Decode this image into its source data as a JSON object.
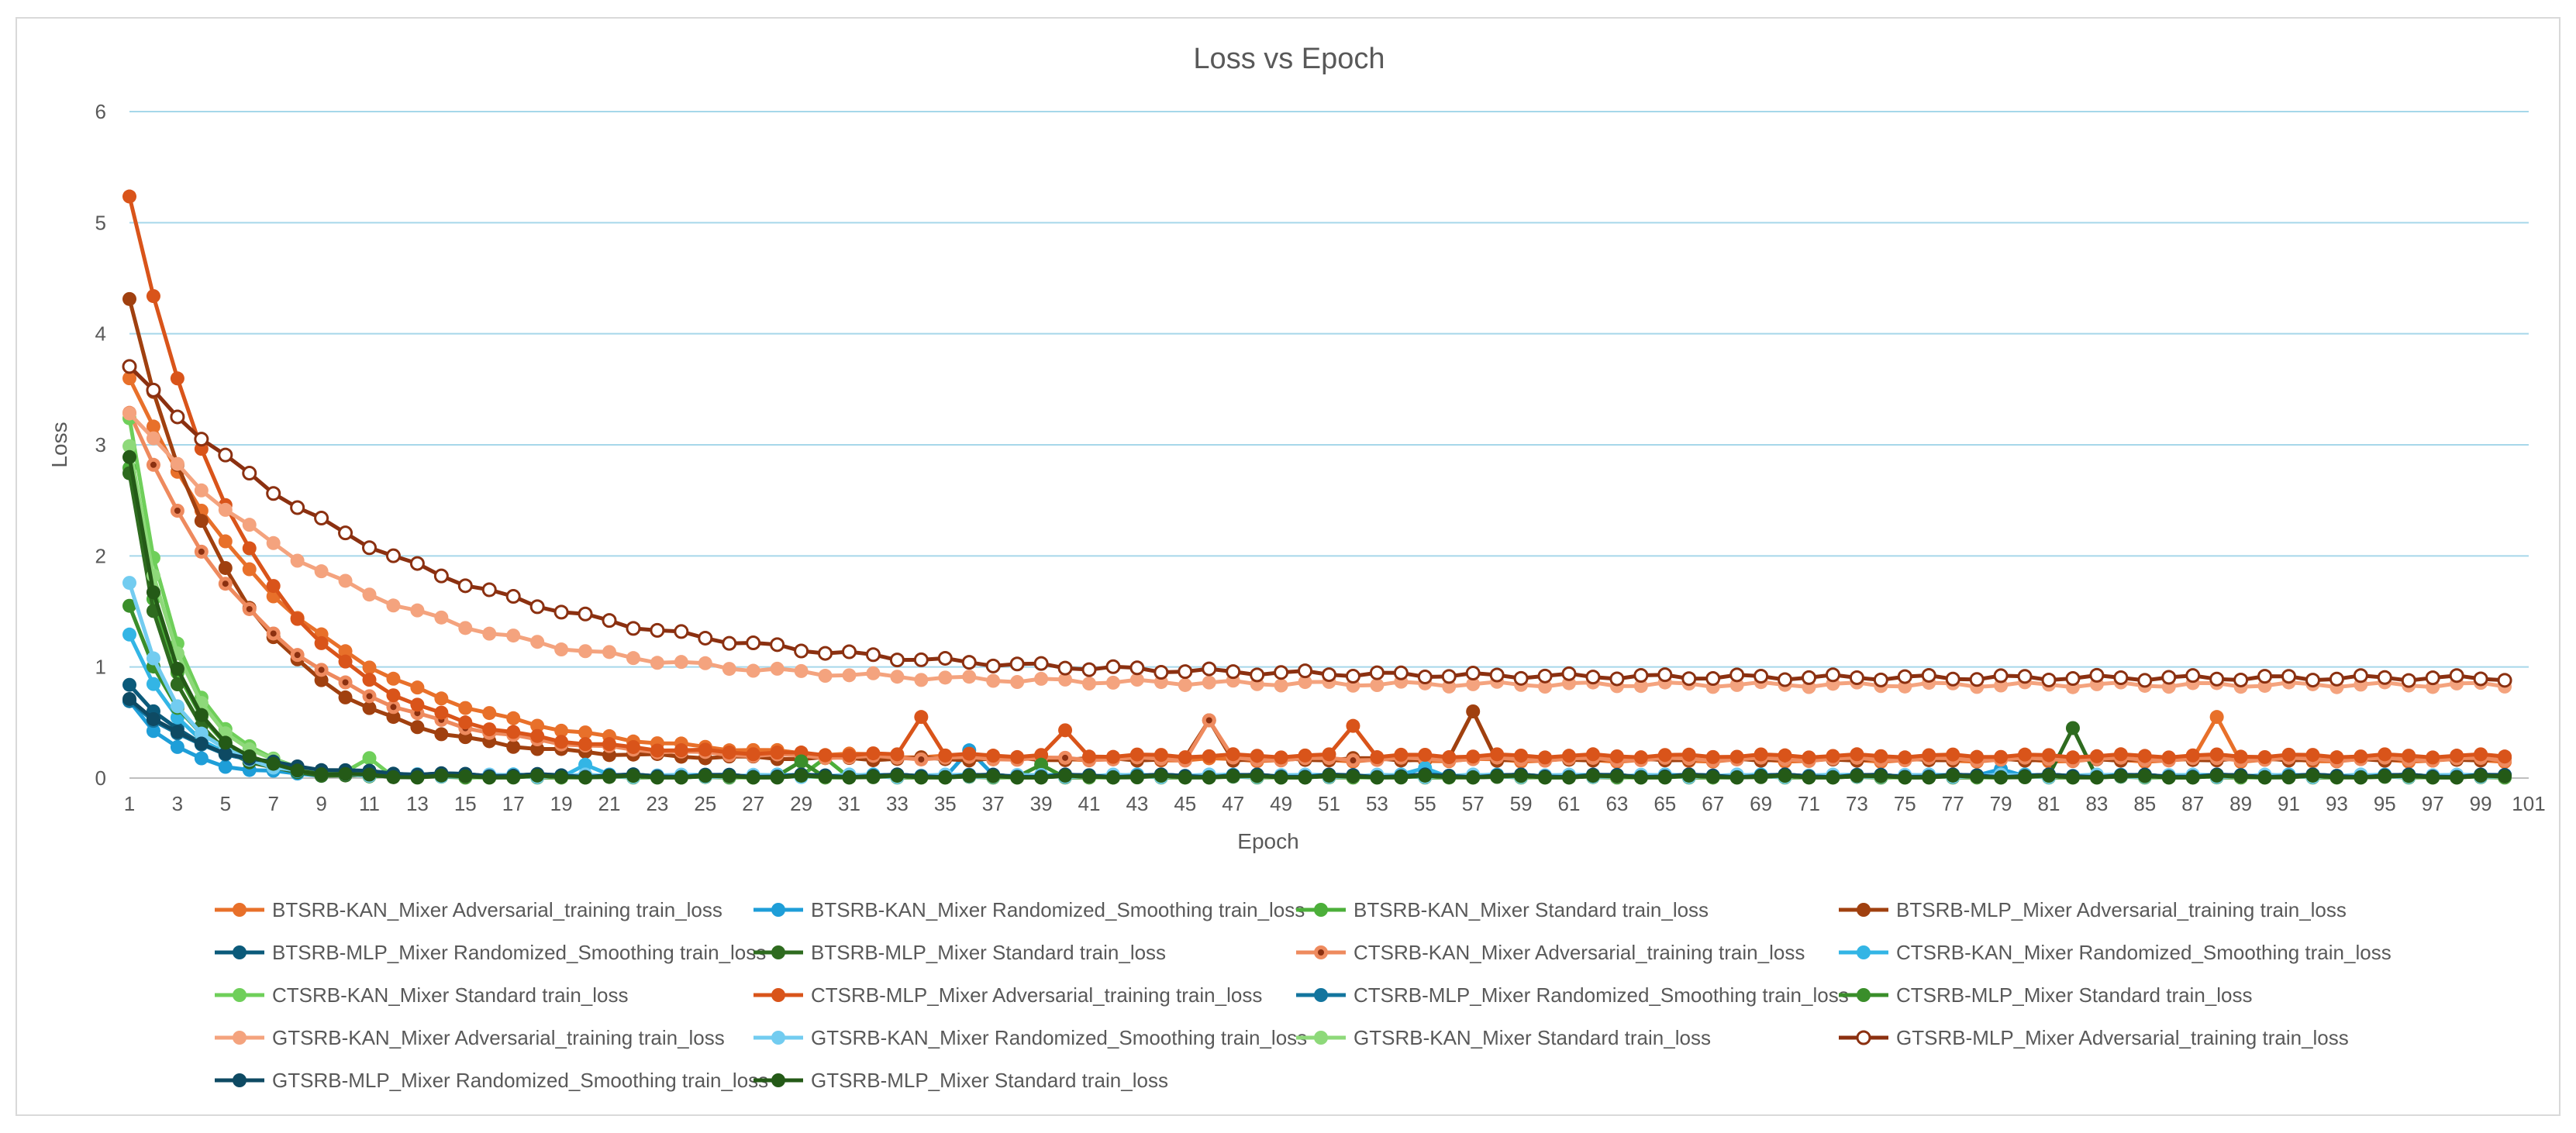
{
  "chart_data": {
    "type": "line",
    "title": "Loss vs Epoch",
    "xlabel": "Epoch",
    "ylabel": "Loss",
    "ylim": [
      0,
      6
    ],
    "xlim": [
      1,
      101
    ],
    "y_ticks": [
      0,
      1,
      2,
      3,
      4,
      5,
      6
    ],
    "x_ticks": [
      1,
      3,
      5,
      7,
      9,
      11,
      13,
      15,
      17,
      19,
      21,
      23,
      25,
      27,
      29,
      31,
      33,
      35,
      37,
      39,
      41,
      43,
      45,
      47,
      49,
      51,
      53,
      55,
      57,
      59,
      61,
      63,
      65,
      67,
      69,
      71,
      73,
      75,
      77,
      79,
      81,
      83,
      85,
      87,
      89,
      91,
      93,
      95,
      97,
      99,
      101
    ],
    "grid": true,
    "legend_position": "bottom",
    "series": [
      {
        "name": "BTSRB-KAN_Mixer Adversarial_training train_loss",
        "color": "#E8702A",
        "marker": "filled",
        "shape": "decay",
        "epochs": 100,
        "start": 3.6,
        "end": 0.16,
        "k": 0.14,
        "spikes": [
          [
            88,
            0.55
          ]
        ]
      },
      {
        "name": "BTSRB-KAN_Mixer Randomized_Smoothing train_loss",
        "color": "#1E9ED8",
        "marker": "filled",
        "shape": "decay",
        "epochs": 100,
        "start": 0.7,
        "end": 0.02,
        "k": 0.5,
        "spikes": [
          [
            36,
            0.25
          ],
          [
            79,
            0.08
          ]
        ]
      },
      {
        "name": "BTSRB-KAN_Mixer Standard train_loss",
        "color": "#4CAF3A",
        "marker": "filled",
        "shape": "decay",
        "epochs": 100,
        "start": 2.8,
        "end": 0.01,
        "k": 0.55,
        "spikes": [
          [
            30,
            0.18
          ]
        ]
      },
      {
        "name": "BTSRB-MLP_Mixer Adversarial_training train_loss",
        "color": "#A0400F",
        "marker": "filled",
        "shape": "decay",
        "epochs": 100,
        "start": 4.3,
        "end": 0.17,
        "k": 0.22,
        "spikes": [
          [
            57,
            0.6
          ],
          [
            46,
            0.52
          ]
        ]
      },
      {
        "name": "BTSRB-MLP_Mixer Randomized_Smoothing train_loss",
        "color": "#0B5A7A",
        "marker": "filled",
        "shape": "decay",
        "epochs": 100,
        "start": 0.85,
        "end": 0.02,
        "k": 0.35,
        "spikes": []
      },
      {
        "name": "BTSRB-MLP_Mixer Standard train_loss",
        "color": "#2E6B1F",
        "marker": "filled",
        "shape": "decay",
        "epochs": 100,
        "start": 2.75,
        "end": 0.01,
        "k": 0.6,
        "spikes": [
          [
            82,
            0.45
          ]
        ]
      },
      {
        "name": "CTSRB-KAN_Mixer Adversarial_training train_loss",
        "color": "#EE8A5E",
        "marker": "dot",
        "shape": "decay",
        "epochs": 100,
        "start": 3.3,
        "end": 0.17,
        "k": 0.17,
        "spikes": [
          [
            46,
            0.52
          ]
        ]
      },
      {
        "name": "CTSRB-KAN_Mixer Randomized_Smoothing train_loss",
        "color": "#33B5E5",
        "marker": "filled",
        "shape": "decay",
        "epochs": 100,
        "start": 1.3,
        "end": 0.02,
        "k": 0.45,
        "spikes": [
          [
            20,
            0.12
          ],
          [
            55,
            0.09
          ]
        ]
      },
      {
        "name": "CTSRB-KAN_Mixer Standard train_loss",
        "color": "#6FCF5A",
        "marker": "filled",
        "shape": "decay",
        "epochs": 100,
        "start": 3.25,
        "end": 0.01,
        "k": 0.5,
        "spikes": [
          [
            11,
            0.18
          ]
        ]
      },
      {
        "name": "CTSRB-MLP_Mixer Adversarial_training train_loss",
        "color": "#D9541A",
        "marker": "filled",
        "shape": "decay",
        "epochs": 100,
        "start": 5.25,
        "end": 0.2,
        "k": 0.2,
        "spikes": [
          [
            34,
            0.55
          ],
          [
            40,
            0.43
          ],
          [
            52,
            0.47
          ]
        ]
      },
      {
        "name": "CTSRB-MLP_Mixer Randomized_Smoothing train_loss",
        "color": "#13759E",
        "marker": "filled",
        "shape": "decay",
        "epochs": 100,
        "start": 0.7,
        "end": 0.02,
        "k": 0.3,
        "spikes": []
      },
      {
        "name": "CTSRB-MLP_Mixer Standard train_loss",
        "color": "#3A8E2A",
        "marker": "filled",
        "shape": "decay",
        "epochs": 100,
        "start": 1.55,
        "end": 0.01,
        "k": 0.45,
        "spikes": [
          [
            29,
            0.15
          ],
          [
            39,
            0.12
          ]
        ]
      },
      {
        "name": "GTSRB-KAN_Mixer Adversarial_training train_loss",
        "color": "#F4A37E",
        "marker": "filled",
        "shape": "decay",
        "epochs": 100,
        "start": 3.3,
        "end": 0.84,
        "k": 0.11,
        "spikes": []
      },
      {
        "name": "GTSRB-KAN_Mixer Randomized_Smoothing train_loss",
        "color": "#72CCF0",
        "marker": "filled",
        "shape": "decay",
        "epochs": 100,
        "start": 1.75,
        "end": 0.02,
        "k": 0.5,
        "spikes": []
      },
      {
        "name": "GTSRB-KAN_Mixer Standard train_loss",
        "color": "#8ED97A",
        "marker": "filled",
        "shape": "decay",
        "epochs": 100,
        "start": 3.0,
        "end": 0.01,
        "k": 0.5,
        "spikes": []
      },
      {
        "name": "GTSRB-MLP_Mixer Adversarial_training train_loss",
        "color": "#8B3010",
        "marker": "hollow",
        "shape": "decay",
        "epochs": 100,
        "start": 3.7,
        "end": 0.9,
        "k": 0.085,
        "spikes": []
      },
      {
        "name": "GTSRB-MLP_Mixer Randomized_Smoothing train_loss",
        "color": "#0E4A63",
        "marker": "filled",
        "shape": "decay",
        "epochs": 100,
        "start": 0.72,
        "end": 0.02,
        "k": 0.3,
        "spikes": []
      },
      {
        "name": "GTSRB-MLP_Mixer Standard train_loss",
        "color": "#245A17",
        "marker": "filled",
        "shape": "decay",
        "epochs": 100,
        "start": 2.9,
        "end": 0.01,
        "k": 0.55,
        "spikes": []
      }
    ]
  }
}
